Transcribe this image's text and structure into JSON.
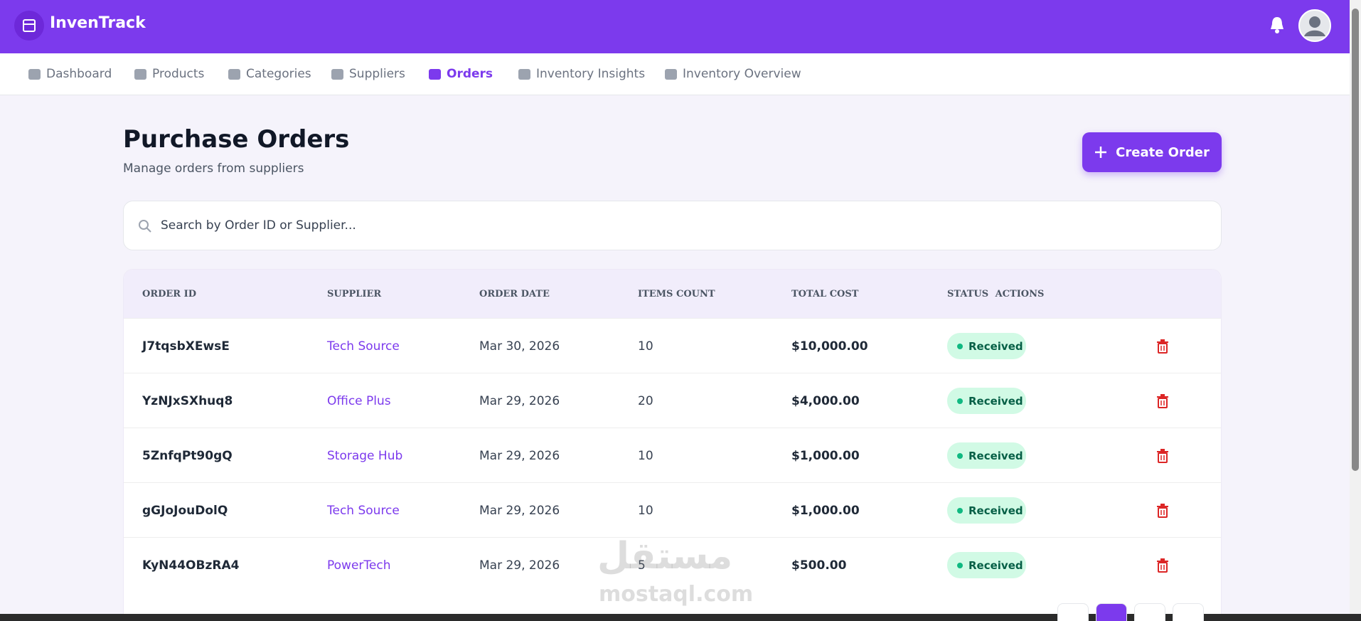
{
  "header": {
    "brand": "InvenTrack"
  },
  "nav": [
    "Dashboard",
    "Products",
    "Categories",
    "Suppliers",
    "Orders",
    "Inventory Insights",
    "Inventory Overview"
  ],
  "page": {
    "title": "Purchase Orders",
    "subtitle": "Manage orders from suppliers",
    "button": "Create Order",
    "search_placeholder": "Search by Order ID or Supplier..."
  },
  "table": {
    "columns": [
      "ORDER ID",
      "SUPPLIER",
      "ORDER DATE",
      "ITEMS COUNT",
      "TOTAL COST",
      "STATUS",
      "ACTIONS"
    ],
    "rows": [
      [
        "J7tqsbXEwsE",
        "Tech Source",
        "Mar 30, 2026",
        "10",
        "$10,000.00",
        "Received"
      ],
      [
        "YzNJxSXhuq8",
        "Office Plus",
        "Mar 29, 2026",
        "20",
        "$4,000.00",
        "Received"
      ],
      [
        "5ZnfqPt90gQ",
        "Storage Hub",
        "Mar 29, 2026",
        "10",
        "$1,000.00",
        "Received"
      ],
      [
        "gGJoJouDolQ",
        "Tech Source",
        "Mar 29, 2026",
        "10",
        "$1,000.00",
        "Received"
      ],
      [
        "KyN44OBzRA4",
        "PowerTech",
        "Mar 29, 2026",
        "5",
        "$500.00",
        "Received"
      ]
    ]
  },
  "watermark": {
    "arabic": "مستقل",
    "latin": "mostaql.com"
  }
}
